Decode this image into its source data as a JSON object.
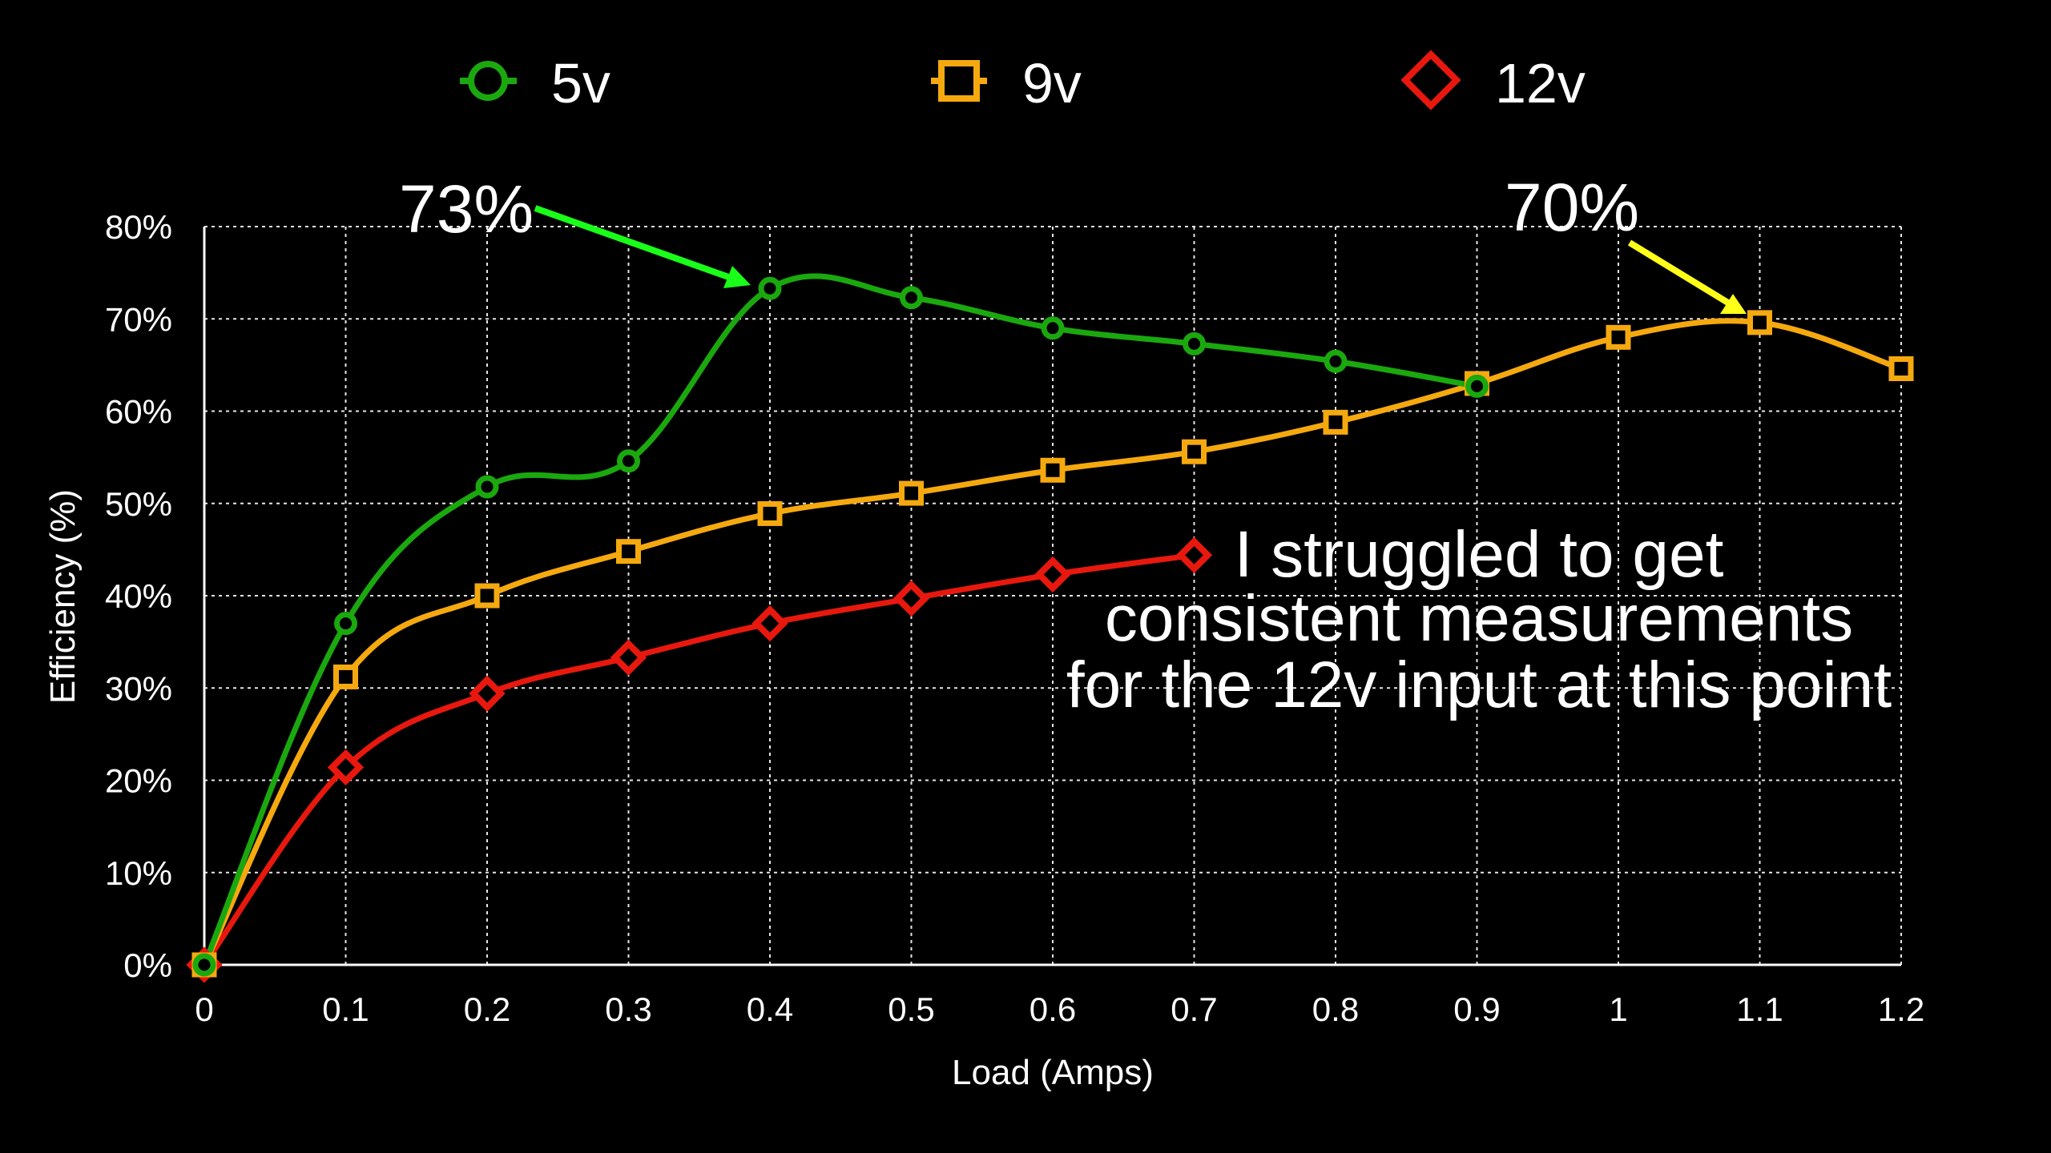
{
  "chart_data": {
    "type": "line",
    "title": "",
    "xlabel": "Load (Amps)",
    "ylabel": "Efficiency (%)",
    "xlim": [
      0,
      1.2
    ],
    "ylim": [
      0,
      80
    ],
    "grid": true,
    "legend_position": "top",
    "x_ticks": [
      "0",
      "0.1",
      "0.2",
      "0.3",
      "0.4",
      "0.5",
      "0.6",
      "0.7",
      "0.8",
      "0.9",
      "1",
      "1.1",
      "1.2"
    ],
    "y_ticks": [
      "0%",
      "10%",
      "20%",
      "30%",
      "40%",
      "50%",
      "60%",
      "70%",
      "80%"
    ],
    "series": [
      {
        "name": "5v",
        "color": "#1aa80e",
        "marker": "circle",
        "x": [
          0,
          0.1,
          0.2,
          0.3,
          0.4,
          0.5,
          0.6,
          0.7,
          0.8,
          0.9
        ],
        "values": [
          0,
          37.0,
          51.8,
          54.6,
          73.3,
          72.3,
          69.0,
          67.3,
          65.4,
          62.7
        ]
      },
      {
        "name": "9v",
        "color": "#f5a90f",
        "marker": "square",
        "x": [
          0,
          0.1,
          0.2,
          0.3,
          0.4,
          0.5,
          0.6,
          0.7,
          0.8,
          0.9,
          1.0,
          1.1,
          1.2
        ],
        "values": [
          0,
          31.2,
          40.0,
          44.8,
          48.9,
          51.1,
          53.6,
          55.6,
          58.8,
          63.0,
          68.0,
          69.6,
          64.6
        ]
      },
      {
        "name": "12v",
        "color": "#e8180e",
        "marker": "diamond",
        "x": [
          0,
          0.1,
          0.2,
          0.3,
          0.4,
          0.5,
          0.6,
          0.7
        ],
        "values": [
          0,
          21.4,
          29.4,
          33.3,
          37.0,
          39.7,
          42.3,
          44.4
        ]
      }
    ],
    "annotations": [
      {
        "text": "73%",
        "points_to": {
          "series": "5v",
          "x": 0.4
        },
        "arrow_color": "#19ff19"
      },
      {
        "text": "70%",
        "points_to": {
          "series": "9v",
          "x": 1.1
        },
        "arrow_color": "#ffff1a"
      },
      {
        "text": "I struggled to get consistent measurements for the 12v input at this point",
        "lines": [
          "I struggled to get",
          "consistent measurements",
          "for the 12v input at this point"
        ],
        "points_to": {
          "series": "12v",
          "x": 0.7
        }
      }
    ]
  },
  "legend": [
    {
      "label": "5v"
    },
    {
      "label": "9v"
    },
    {
      "label": "12v"
    }
  ],
  "annotation_73": "73%",
  "annotation_70": "70%",
  "note_lines": [
    "I struggled to get",
    "consistent measurements",
    "for the 12v input at this point"
  ]
}
